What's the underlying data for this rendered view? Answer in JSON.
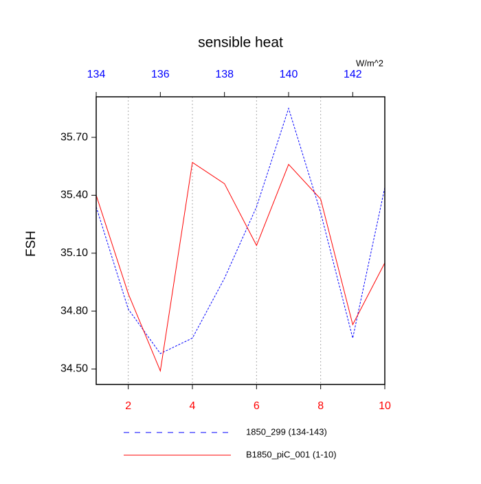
{
  "chart_data": {
    "type": "line",
    "title": "sensible heat",
    "ylabel": "FSH",
    "x2label": "W/m^2",
    "xlim": [
      1,
      10
    ],
    "xticks": [
      2,
      4,
      6,
      8,
      10
    ],
    "xtick_color": "#ff0000",
    "x2lim": [
      134,
      143
    ],
    "x2ticks": [
      134,
      136,
      138,
      140,
      142
    ],
    "x2tick_color": "#0000ff",
    "ylim": [
      34.42,
      35.91
    ],
    "yticks": [
      {
        "value": 34.5,
        "label": "34.50"
      },
      {
        "value": 34.8,
        "label": "34.80"
      },
      {
        "value": 35.1,
        "label": "35.10"
      },
      {
        "value": 35.4,
        "label": "35.40"
      },
      {
        "value": 35.7,
        "label": "35.70"
      }
    ],
    "grid": true,
    "series": [
      {
        "name": "1850_299 (134-143)",
        "color": "#0000ff",
        "dashed": true,
        "axis": "x2",
        "x": [
          134,
          135,
          136,
          137,
          138,
          139,
          140,
          141,
          142,
          143
        ],
        "values": [
          35.34,
          34.81,
          34.58,
          34.66,
          34.97,
          35.34,
          35.85,
          35.31,
          34.66,
          35.44
        ]
      },
      {
        "name": "B1850_piC_001 (1-10)",
        "color": "#ff0000",
        "dashed": false,
        "x": [
          1,
          2,
          3,
          4,
          5,
          6,
          7,
          8,
          9,
          10
        ],
        "values": [
          35.4,
          34.89,
          34.49,
          35.57,
          35.46,
          35.14,
          35.56,
          35.38,
          34.73,
          35.05
        ]
      }
    ]
  }
}
